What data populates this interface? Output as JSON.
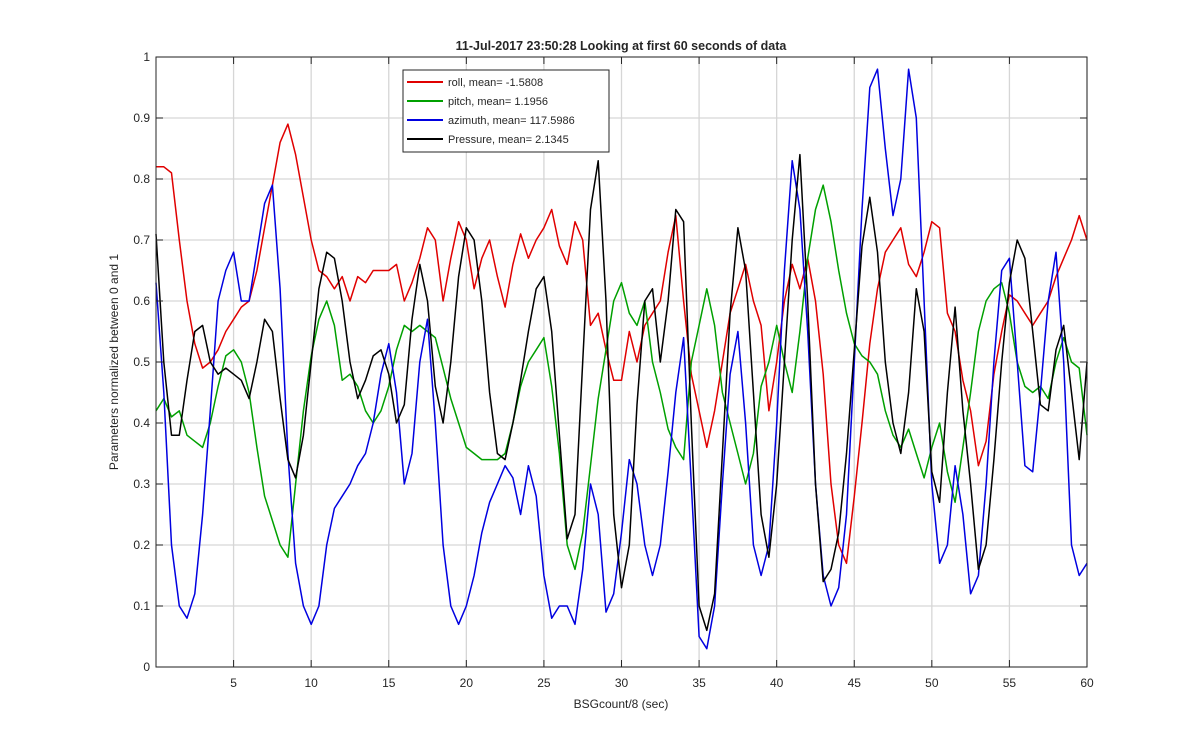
{
  "chart_data": {
    "type": "line",
    "title": "11-Jul-2017 23:50:28 Looking at first 60 seconds of data",
    "xlabel": "BSGcount/8 (sec)",
    "ylabel": "Parameters normalized between 0 and 1",
    "xlim": [
      0,
      60
    ],
    "ylim": [
      0,
      1
    ],
    "xticks": [
      5,
      10,
      15,
      20,
      25,
      30,
      35,
      40,
      45,
      50,
      55,
      60
    ],
    "yticks": [
      0,
      0.1,
      0.2,
      0.3,
      0.4,
      0.5,
      0.6,
      0.7,
      0.8,
      0.9,
      1
    ],
    "grid": true,
    "legend_position": "top-center",
    "series": [
      {
        "name": "roll, mean= -1.5808",
        "color": "#e00000",
        "x": [
          0,
          0.5,
          1,
          1.5,
          2,
          2.5,
          3,
          3.5,
          4,
          4.5,
          5,
          5.5,
          6,
          6.5,
          7,
          7.5,
          8,
          8.5,
          9,
          9.5,
          10,
          10.5,
          11,
          11.5,
          12,
          12.5,
          13,
          13.5,
          14,
          14.5,
          15,
          15.5,
          16,
          16.5,
          17,
          17.5,
          18,
          18.5,
          19,
          19.5,
          20,
          20.5,
          21,
          21.5,
          22,
          22.5,
          23,
          23.5,
          24,
          24.5,
          25,
          25.5,
          26,
          26.5,
          27,
          27.5,
          28,
          28.5,
          29,
          29.5,
          30,
          30.5,
          31,
          31.5,
          32,
          32.5,
          33,
          33.5,
          34,
          34.5,
          35,
          35.5,
          36,
          36.5,
          37,
          37.5,
          38,
          38.5,
          39,
          39.5,
          40,
          40.5,
          41,
          41.5,
          42,
          42.5,
          43,
          43.5,
          44,
          44.5,
          45,
          45.5,
          46,
          46.5,
          47,
          47.5,
          48,
          48.5,
          49,
          49.5,
          50,
          50.5,
          51,
          51.5,
          52,
          52.5,
          53,
          53.5,
          54,
          54.5,
          55,
          55.5,
          56,
          56.5,
          57,
          57.5,
          58,
          58.5,
          59,
          59.5,
          60
        ],
        "values": [
          0.82,
          0.82,
          0.81,
          0.7,
          0.6,
          0.53,
          0.49,
          0.5,
          0.52,
          0.55,
          0.57,
          0.59,
          0.6,
          0.65,
          0.72,
          0.79,
          0.86,
          0.89,
          0.84,
          0.77,
          0.7,
          0.65,
          0.64,
          0.62,
          0.64,
          0.6,
          0.64,
          0.63,
          0.65,
          0.65,
          0.65,
          0.66,
          0.6,
          0.63,
          0.67,
          0.72,
          0.7,
          0.6,
          0.67,
          0.73,
          0.7,
          0.62,
          0.67,
          0.7,
          0.64,
          0.59,
          0.66,
          0.71,
          0.67,
          0.7,
          0.72,
          0.75,
          0.69,
          0.66,
          0.73,
          0.7,
          0.56,
          0.58,
          0.52,
          0.47,
          0.47,
          0.55,
          0.5,
          0.56,
          0.58,
          0.6,
          0.68,
          0.74,
          0.6,
          0.48,
          0.42,
          0.36,
          0.42,
          0.5,
          0.58,
          0.62,
          0.66,
          0.6,
          0.56,
          0.42,
          0.5,
          0.6,
          0.66,
          0.62,
          0.67,
          0.6,
          0.48,
          0.3,
          0.2,
          0.17,
          0.28,
          0.4,
          0.53,
          0.62,
          0.68,
          0.7,
          0.72,
          0.66,
          0.64,
          0.68,
          0.73,
          0.72,
          0.58,
          0.55,
          0.47,
          0.42,
          0.33,
          0.37,
          0.48,
          0.55,
          0.61,
          0.6,
          0.58,
          0.56,
          0.58,
          0.6,
          0.64,
          0.67,
          0.7,
          0.74,
          0.7
        ]
      },
      {
        "name": "pitch, mean= 1.1956",
        "color": "#00a000",
        "x": [
          0,
          0.5,
          1,
          1.5,
          2,
          2.5,
          3,
          3.5,
          4,
          4.5,
          5,
          5.5,
          6,
          6.5,
          7,
          7.5,
          8,
          8.5,
          9,
          9.5,
          10,
          10.5,
          11,
          11.5,
          12,
          12.5,
          13,
          13.5,
          14,
          14.5,
          15,
          15.5,
          16,
          16.5,
          17,
          17.5,
          18,
          18.5,
          19,
          19.5,
          20,
          20.5,
          21,
          21.5,
          22,
          22.5,
          23,
          23.5,
          24,
          24.5,
          25,
          25.5,
          26,
          26.5,
          27,
          27.5,
          28,
          28.5,
          29,
          29.5,
          30,
          30.5,
          31,
          31.5,
          32,
          32.5,
          33,
          33.5,
          34,
          34.5,
          35,
          35.5,
          36,
          36.5,
          37,
          37.5,
          38,
          38.5,
          39,
          39.5,
          40,
          40.5,
          41,
          41.5,
          42,
          42.5,
          43,
          43.5,
          44,
          44.5,
          45,
          45.5,
          46,
          46.5,
          47,
          47.5,
          48,
          48.5,
          49,
          49.5,
          50,
          50.5,
          51,
          51.5,
          52,
          52.5,
          53,
          53.5,
          54,
          54.5,
          55,
          55.5,
          56,
          56.5,
          57,
          57.5,
          58,
          58.5,
          59,
          59.5,
          60
        ],
        "values": [
          0.42,
          0.44,
          0.41,
          0.42,
          0.38,
          0.37,
          0.36,
          0.4,
          0.46,
          0.51,
          0.52,
          0.5,
          0.45,
          0.36,
          0.28,
          0.24,
          0.2,
          0.18,
          0.3,
          0.42,
          0.51,
          0.57,
          0.6,
          0.56,
          0.47,
          0.48,
          0.46,
          0.42,
          0.4,
          0.42,
          0.46,
          0.52,
          0.56,
          0.55,
          0.56,
          0.55,
          0.54,
          0.49,
          0.44,
          0.4,
          0.36,
          0.35,
          0.34,
          0.34,
          0.34,
          0.35,
          0.4,
          0.46,
          0.5,
          0.52,
          0.54,
          0.46,
          0.35,
          0.2,
          0.16,
          0.22,
          0.33,
          0.44,
          0.52,
          0.6,
          0.63,
          0.58,
          0.56,
          0.6,
          0.5,
          0.45,
          0.39,
          0.36,
          0.34,
          0.5,
          0.56,
          0.62,
          0.56,
          0.45,
          0.4,
          0.35,
          0.3,
          0.35,
          0.46,
          0.5,
          0.56,
          0.5,
          0.45,
          0.55,
          0.67,
          0.75,
          0.79,
          0.73,
          0.65,
          0.58,
          0.53,
          0.51,
          0.5,
          0.48,
          0.42,
          0.38,
          0.36,
          0.39,
          0.35,
          0.31,
          0.36,
          0.4,
          0.32,
          0.27,
          0.36,
          0.45,
          0.55,
          0.6,
          0.62,
          0.63,
          0.58,
          0.5,
          0.46,
          0.45,
          0.46,
          0.44,
          0.5,
          0.54,
          0.5,
          0.49,
          0.38
        ]
      },
      {
        "name": "azimuth, mean= 117.5986",
        "color": "#0000e0",
        "x": [
          0,
          0.5,
          1,
          1.5,
          2,
          2.5,
          3,
          3.5,
          4,
          4.5,
          5,
          5.5,
          6,
          6.5,
          7,
          7.5,
          8,
          8.5,
          9,
          9.5,
          10,
          10.5,
          11,
          11.5,
          12,
          12.5,
          13,
          13.5,
          14,
          14.5,
          15,
          15.5,
          16,
          16.5,
          17,
          17.5,
          18,
          18.5,
          19,
          19.5,
          20,
          20.5,
          21,
          21.5,
          22,
          22.5,
          23,
          23.5,
          24,
          24.5,
          25,
          25.5,
          26,
          26.5,
          27,
          27.5,
          28,
          28.5,
          29,
          29.5,
          30,
          30.5,
          31,
          31.5,
          32,
          32.5,
          33,
          33.5,
          34,
          34.5,
          35,
          35.5,
          36,
          36.5,
          37,
          37.5,
          38,
          38.5,
          39,
          39.5,
          40,
          40.5,
          41,
          41.5,
          42,
          42.5,
          43,
          43.5,
          44,
          44.5,
          45,
          45.5,
          46,
          46.5,
          47,
          47.5,
          48,
          48.5,
          49,
          49.5,
          50,
          50.5,
          51,
          51.5,
          52,
          52.5,
          53,
          53.5,
          54,
          54.5,
          55,
          55.5,
          56,
          56.5,
          57,
          57.5,
          58,
          58.5,
          59,
          59.5,
          60
        ],
        "values": [
          0.63,
          0.45,
          0.2,
          0.1,
          0.08,
          0.12,
          0.25,
          0.42,
          0.6,
          0.65,
          0.68,
          0.6,
          0.6,
          0.68,
          0.76,
          0.79,
          0.62,
          0.35,
          0.17,
          0.1,
          0.07,
          0.1,
          0.2,
          0.26,
          0.28,
          0.3,
          0.33,
          0.35,
          0.4,
          0.48,
          0.53,
          0.45,
          0.3,
          0.35,
          0.5,
          0.57,
          0.4,
          0.2,
          0.1,
          0.07,
          0.1,
          0.15,
          0.22,
          0.27,
          0.3,
          0.33,
          0.31,
          0.25,
          0.33,
          0.28,
          0.15,
          0.08,
          0.1,
          0.1,
          0.07,
          0.16,
          0.3,
          0.25,
          0.09,
          0.12,
          0.22,
          0.34,
          0.3,
          0.2,
          0.15,
          0.2,
          0.32,
          0.45,
          0.54,
          0.3,
          0.05,
          0.03,
          0.1,
          0.3,
          0.48,
          0.55,
          0.4,
          0.2,
          0.15,
          0.2,
          0.4,
          0.65,
          0.83,
          0.75,
          0.55,
          0.3,
          0.15,
          0.1,
          0.13,
          0.25,
          0.5,
          0.75,
          0.95,
          0.98,
          0.85,
          0.74,
          0.8,
          0.98,
          0.9,
          0.6,
          0.3,
          0.17,
          0.2,
          0.33,
          0.25,
          0.12,
          0.15,
          0.3,
          0.5,
          0.65,
          0.67,
          0.5,
          0.33,
          0.32,
          0.45,
          0.6,
          0.68,
          0.5,
          0.2,
          0.15,
          0.17
        ]
      },
      {
        "name": "Pressure, mean= 2.1345",
        "color": "#000000",
        "x": [
          0,
          0.5,
          1,
          1.5,
          2,
          2.5,
          3,
          3.5,
          4,
          4.5,
          5,
          5.5,
          6,
          6.5,
          7,
          7.5,
          8,
          8.5,
          9,
          9.5,
          10,
          10.5,
          11,
          11.5,
          12,
          12.5,
          13,
          13.5,
          14,
          14.5,
          15,
          15.5,
          16,
          16.5,
          17,
          17.5,
          18,
          18.5,
          19,
          19.5,
          20,
          20.5,
          21,
          21.5,
          22,
          22.5,
          23,
          23.5,
          24,
          24.5,
          25,
          25.5,
          26,
          26.5,
          27,
          27.5,
          28,
          28.5,
          29,
          29.5,
          30,
          30.5,
          31,
          31.5,
          32,
          32.5,
          33,
          33.5,
          34,
          34.5,
          35,
          35.5,
          36,
          36.5,
          37,
          37.5,
          38,
          38.5,
          39,
          39.5,
          40,
          40.5,
          41,
          41.5,
          42,
          42.5,
          43,
          43.5,
          44,
          44.5,
          45,
          45.5,
          46,
          46.5,
          47,
          47.5,
          48,
          48.5,
          49,
          49.5,
          50,
          50.5,
          51,
          51.5,
          52,
          52.5,
          53,
          53.5,
          54,
          54.5,
          55,
          55.5,
          56,
          56.5,
          57,
          57.5,
          58,
          58.5,
          59,
          59.5,
          60
        ],
        "values": [
          0.71,
          0.5,
          0.38,
          0.38,
          0.47,
          0.55,
          0.56,
          0.5,
          0.48,
          0.49,
          0.48,
          0.47,
          0.44,
          0.5,
          0.57,
          0.55,
          0.44,
          0.34,
          0.31,
          0.38,
          0.5,
          0.62,
          0.68,
          0.67,
          0.6,
          0.5,
          0.44,
          0.47,
          0.51,
          0.52,
          0.48,
          0.4,
          0.43,
          0.57,
          0.66,
          0.6,
          0.46,
          0.4,
          0.5,
          0.64,
          0.72,
          0.7,
          0.6,
          0.45,
          0.35,
          0.34,
          0.4,
          0.47,
          0.55,
          0.62,
          0.64,
          0.55,
          0.38,
          0.21,
          0.25,
          0.5,
          0.75,
          0.83,
          0.6,
          0.25,
          0.13,
          0.2,
          0.43,
          0.6,
          0.62,
          0.5,
          0.6,
          0.75,
          0.73,
          0.4,
          0.1,
          0.06,
          0.12,
          0.35,
          0.58,
          0.72,
          0.65,
          0.45,
          0.25,
          0.18,
          0.3,
          0.5,
          0.7,
          0.84,
          0.6,
          0.3,
          0.14,
          0.16,
          0.22,
          0.35,
          0.52,
          0.69,
          0.77,
          0.68,
          0.5,
          0.4,
          0.35,
          0.45,
          0.62,
          0.55,
          0.32,
          0.27,
          0.45,
          0.59,
          0.42,
          0.3,
          0.16,
          0.2,
          0.34,
          0.5,
          0.63,
          0.7,
          0.67,
          0.55,
          0.43,
          0.42,
          0.52,
          0.56,
          0.45,
          0.34,
          0.5
        ]
      }
    ]
  }
}
